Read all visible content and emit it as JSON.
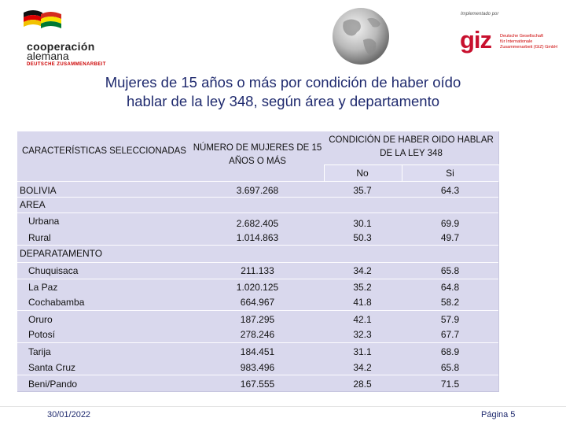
{
  "header": {
    "logo_left": {
      "line1": "cooperación",
      "line2": "alemana",
      "line3": "DEUTSCHE ZUSAMMENARBEIT"
    },
    "logo_right": {
      "implemented_by": "Implementado por",
      "brand": "giz",
      "org_lines": [
        "Deutsche Gesellschaft",
        "für Internationale",
        "Zusammenarbeit (GIZ) GmbH"
      ]
    }
  },
  "title": {
    "line1": "Mujeres de 15 años o más por condición de haber oído",
    "line2": "hablar de la ley 348, según área y departamento"
  },
  "table": {
    "col_characteristics": "CARACTERÍSTICAS SELECCIONADAS",
    "col_count_line1": "NÚMERO DE MUJERES DE 15",
    "col_count_line2": "AÑOS O MÁS",
    "col_condition_line1": "CONDICIÓN DE HABER OIDO HABLAR",
    "col_condition_line2": "DE LA LEY 348",
    "col_no": "No",
    "col_si": "Si",
    "rows": [
      {
        "label": "BOLIVIA",
        "count": "3.697.268",
        "no": "35.7",
        "si": "64.3"
      },
      {
        "label": "AREA",
        "count": "",
        "no": "",
        "si": ""
      },
      {
        "label": "Urbana",
        "count": "2.682.405",
        "no": "30.1",
        "si": "69.9"
      },
      {
        "label": "Rural",
        "count": "1.014.863",
        "no": "50.3",
        "si": "49.7"
      },
      {
        "label": "DEPARATAMENTO",
        "count": "",
        "no": "",
        "si": ""
      },
      {
        "label": "Chuquisaca",
        "count": "211.133",
        "no": "34.2",
        "si": "65.8"
      },
      {
        "label": "La Paz",
        "count": "1.020.125",
        "no": "35.2",
        "si": "64.8"
      },
      {
        "label": "Cochabamba",
        "count": "664.967",
        "no": "41.8",
        "si": "58.2"
      },
      {
        "label": "Oruro",
        "count": "187.295",
        "no": "42.1",
        "si": "57.9"
      },
      {
        "label": "Potosí",
        "count": "278.246",
        "no": "32.3",
        "si": "67.7"
      },
      {
        "label": "Tarija",
        "count": "184.451",
        "no": "31.1",
        "si": "68.9"
      },
      {
        "label": "Santa Cruz",
        "count": "983.496",
        "no": "34.2",
        "si": "65.8"
      },
      {
        "label": "Beni/Pando",
        "count": "167.555",
        "no": "28.5",
        "si": "71.5"
      }
    ]
  },
  "footer": {
    "date": "30/01/2022",
    "page": "Página 5"
  },
  "colors": {
    "title": "#1f2a6e",
    "table_bg": "#d9d8ed",
    "giz_red": "#c8102e"
  }
}
